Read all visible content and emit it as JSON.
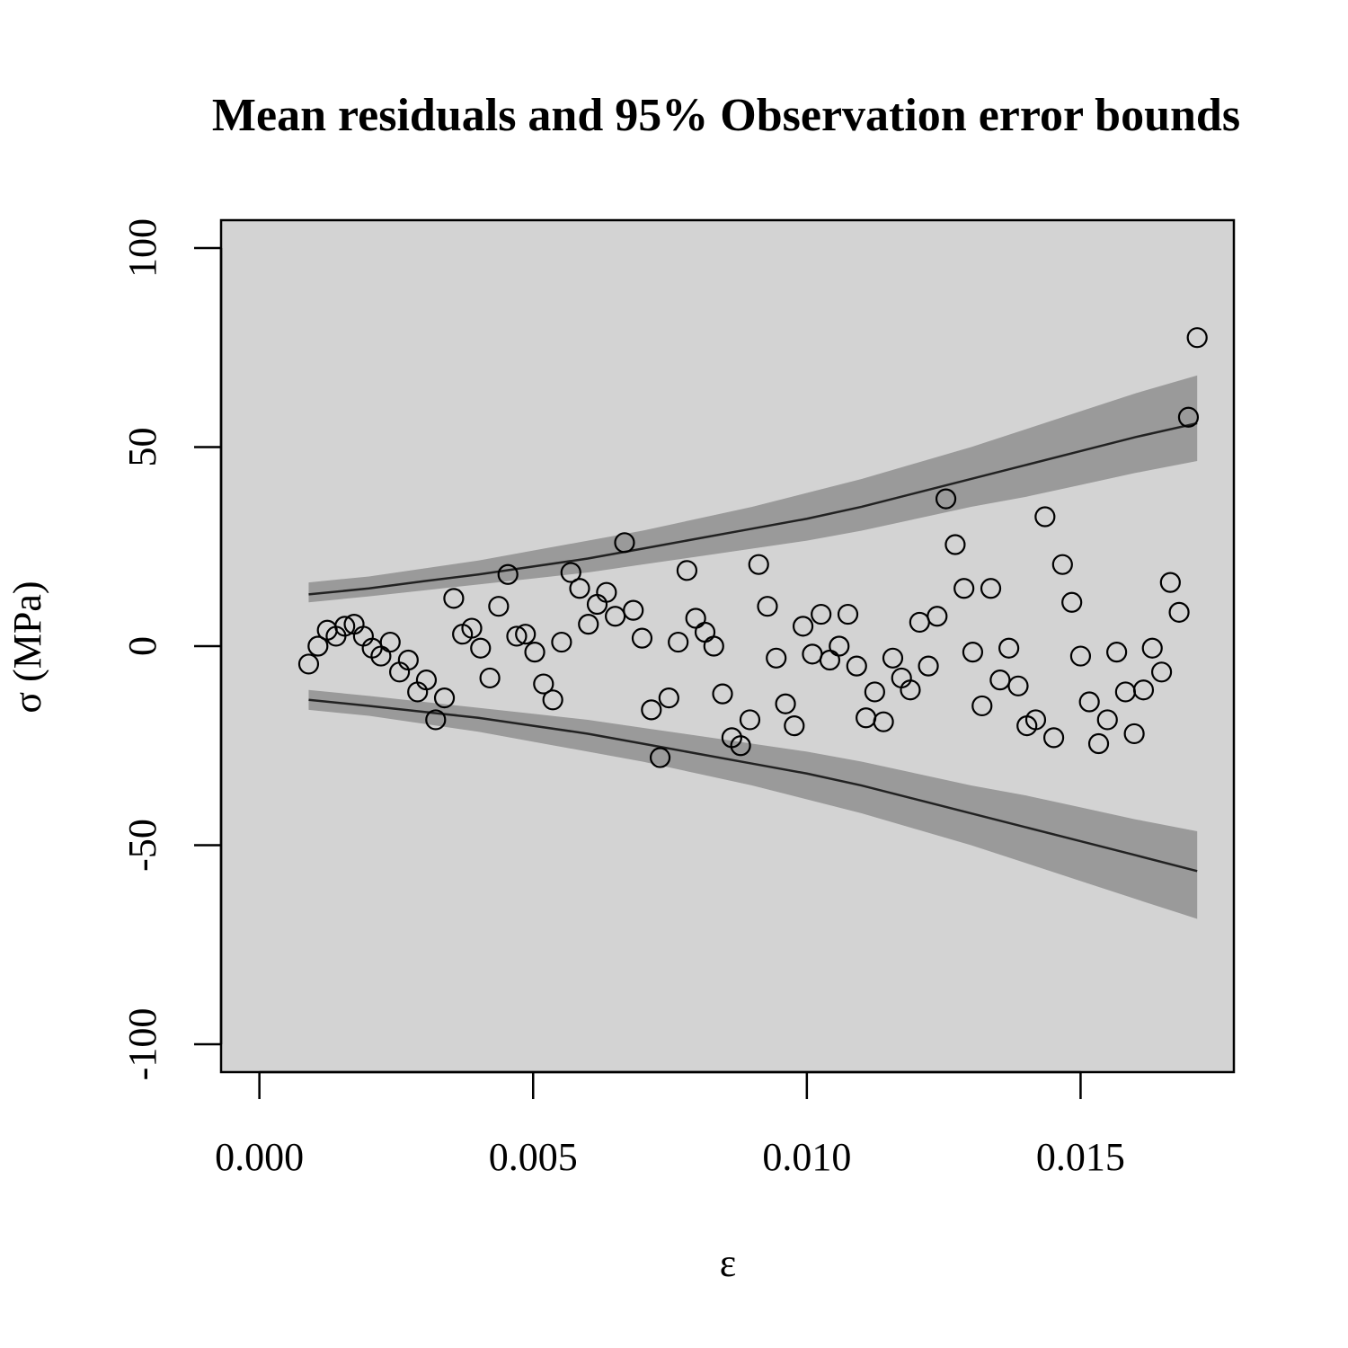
{
  "chart_data": {
    "type": "scatter",
    "title": "Mean residuals and 95% Observation error bounds",
    "xlabel": "ε",
    "ylabel": "σ  (MPa)",
    "xlim": [
      -0.0007,
      0.0178
    ],
    "ylim": [
      -107,
      107
    ],
    "x_ticks": [
      0.0,
      0.005,
      0.01,
      0.015
    ],
    "x_tick_labels": [
      "0.000",
      "0.005",
      "0.010",
      "0.015"
    ],
    "y_ticks": [
      -100,
      -50,
      0,
      50,
      100
    ],
    "y_tick_labels": [
      "-100",
      "-50",
      "0",
      "50",
      "100"
    ],
    "colors": {
      "panel_background": "#d3d3d3",
      "band_fill": "#9a9a9a",
      "line": "#222222",
      "points": "#000000"
    },
    "points": {
      "x": [
        0.0009,
        0.00107,
        0.00124,
        0.0014,
        0.00156,
        0.00173,
        0.0019,
        0.00206,
        0.00222,
        0.00239,
        0.00256,
        0.00272,
        0.00289,
        0.00305,
        0.00322,
        0.00338,
        0.00355,
        0.00371,
        0.00388,
        0.00404,
        0.00421,
        0.00437,
        0.00454,
        0.0047,
        0.00486,
        0.00503,
        0.00519,
        0.00536,
        0.00552,
        0.00569,
        0.00585,
        0.00601,
        0.00617,
        0.00634,
        0.0065,
        0.00667,
        0.00683,
        0.00699,
        0.00716,
        0.00732,
        0.00748,
        0.00765,
        0.00781,
        0.00797,
        0.00814,
        0.0083,
        0.00846,
        0.00863,
        0.00879,
        0.00896,
        0.00912,
        0.00928,
        0.00944,
        0.00961,
        0.00977,
        0.00993,
        0.0101,
        0.01026,
        0.01042,
        0.01059,
        0.01075,
        0.01091,
        0.01108,
        0.01124,
        0.0114,
        0.01157,
        0.01173,
        0.01189,
        0.01206,
        0.01222,
        0.01238,
        0.01254,
        0.01271,
        0.01287,
        0.01303,
        0.0132,
        0.01336,
        0.01353,
        0.01369,
        0.01386,
        0.01402,
        0.01418,
        0.01435,
        0.01451,
        0.01467,
        0.01484,
        0.015,
        0.01516,
        0.01533,
        0.01549,
        0.01566,
        0.01582,
        0.01598,
        0.01615,
        0.01631,
        0.01648,
        0.01664,
        0.0168,
        0.01697,
        0.01713
      ],
      "y": [
        -4.5,
        0,
        4,
        2.5,
        5,
        5.5,
        2.5,
        -0.5,
        -2.5,
        1,
        -6.5,
        -3.5,
        -11.5,
        -8.5,
        -18.5,
        -13,
        12,
        3,
        4.5,
        -0.5,
        -8,
        10,
        18,
        2.5,
        3,
        -1.5,
        -9.5,
        -13.5,
        1,
        18.5,
        14.5,
        5.5,
        10.5,
        13.5,
        7.5,
        26,
        9,
        2,
        -16,
        -28,
        -13,
        1,
        19,
        7,
        3.5,
        0,
        -12,
        -23,
        -25,
        -18.5,
        20.5,
        10,
        -3,
        -14.5,
        -20,
        5,
        -2,
        8,
        -3.5,
        0,
        8,
        -5,
        -18,
        -11.5,
        -19,
        -3,
        -8,
        -11,
        6,
        -5,
        7.5,
        37,
        25.5,
        14.5,
        -1.5,
        -15,
        14.5,
        -8.5,
        -0.5,
        -10,
        -20,
        -18.5,
        32.5,
        -23,
        20.5,
        11,
        -2.5,
        -14,
        -24.5,
        -18.5,
        -1.5,
        -11.5,
        -22,
        -11,
        -0.5,
        -6.5,
        16,
        8.5,
        57.5,
        77.5
      ]
    },
    "upper_bound": {
      "x": [
        0.0009,
        0.002,
        0.003,
        0.004,
        0.005,
        0.006,
        0.007,
        0.008,
        0.009,
        0.01,
        0.011,
        0.012,
        0.013,
        0.014,
        0.015,
        0.016,
        0.01713
      ],
      "mean": [
        13,
        14.5,
        16.3,
        18,
        20,
        22,
        24.5,
        27,
        29.5,
        32,
        35,
        38.5,
        42,
        45.5,
        49,
        52.5,
        56
      ],
      "lower": [
        11,
        12.5,
        14,
        15.5,
        17,
        18.5,
        20.5,
        22.5,
        24.5,
        26.5,
        29,
        32,
        35,
        37.5,
        40.5,
        43.5,
        46.5
      ],
      "upper": [
        16,
        17.5,
        19.5,
        21.5,
        24,
        26.5,
        29,
        32,
        35,
        38.5,
        42,
        46,
        50,
        54.5,
        59,
        63.5,
        68
      ]
    },
    "lower_bound": {
      "x": [
        0.0009,
        0.002,
        0.003,
        0.004,
        0.005,
        0.006,
        0.007,
        0.008,
        0.009,
        0.01,
        0.011,
        0.012,
        0.013,
        0.014,
        0.015,
        0.016,
        0.01713
      ],
      "mean": [
        -13.5,
        -15,
        -16.5,
        -18,
        -20,
        -22,
        -24.5,
        -27,
        -29.5,
        -32,
        -35,
        -38.5,
        -42,
        -45.5,
        -49,
        -52.5,
        -56.5
      ],
      "lower": [
        -16,
        -17.5,
        -19.5,
        -21.5,
        -24,
        -26.5,
        -29,
        -32,
        -35,
        -38.5,
        -42,
        -46,
        -50,
        -54.5,
        -59,
        -63.5,
        -68.5
      ],
      "upper": [
        -11,
        -12.5,
        -14,
        -15.5,
        -17,
        -18.5,
        -20.5,
        -22.5,
        -24.5,
        -26.5,
        -29,
        -32,
        -35,
        -37.5,
        -40.5,
        -43.5,
        -46.5
      ]
    },
    "grid": false,
    "legend": "none"
  }
}
